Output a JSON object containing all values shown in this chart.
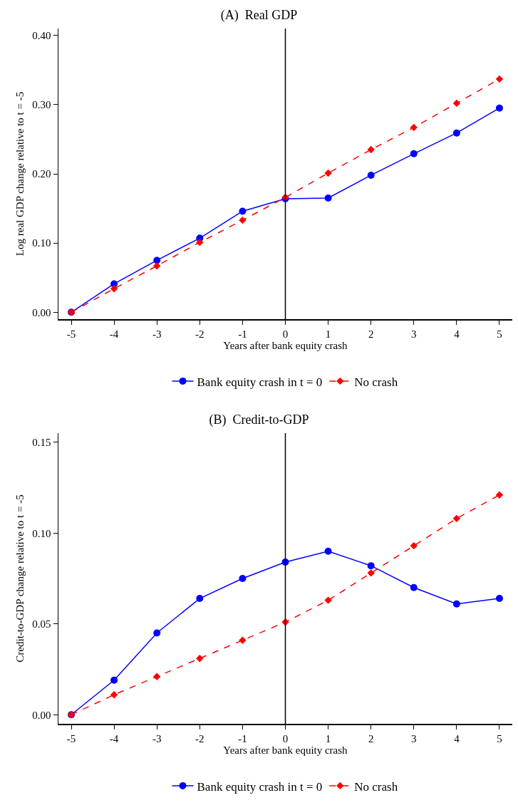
{
  "chart_data": [
    {
      "type": "line",
      "title": "(A)  Real GDP",
      "xlabel": "Years after bank equity crash",
      "ylabel": "Log real GDP change relative to t = -5",
      "x": [
        -5,
        -4,
        -3,
        -2,
        -1,
        0,
        1,
        2,
        3,
        4,
        5
      ],
      "series": [
        {
          "name": "Bank equity crash in t = 0",
          "color": "#0000ff",
          "marker": "circle",
          "line_style": "solid",
          "values": [
            0,
            0.041,
            0.075,
            0.107,
            0.146,
            0.164,
            0.165,
            0.198,
            0.229,
            0.259,
            0.295
          ]
        },
        {
          "name": "No crash",
          "color": "#ff0000",
          "marker": "diamond",
          "line_style": "dashed",
          "values": [
            0,
            0.034,
            0.067,
            0.101,
            0.133,
            0.166,
            0.201,
            0.235,
            0.267,
            0.302,
            0.337
          ]
        }
      ],
      "xlim": [
        -5.3,
        5.3
      ],
      "xticks": [
        -5,
        -4,
        -3,
        -2,
        -1,
        0,
        1,
        2,
        3,
        4,
        5
      ],
      "ylim": [
        -0.01,
        0.41
      ],
      "yticks": [
        {
          "value": 0,
          "label": "0.00"
        },
        {
          "value": 0.1,
          "label": "0.10"
        },
        {
          "value": 0.2,
          "label": "0.20"
        },
        {
          "value": 0.3,
          "label": "0.30"
        },
        {
          "value": 0.4,
          "label": "0.40"
        }
      ],
      "ref_lines": [
        {
          "axis": "x",
          "value": 0,
          "color": "#000000"
        }
      ],
      "grid": false,
      "legend": "bottom"
    },
    {
      "type": "line",
      "title": "(B)  Credit-to-GDP",
      "xlabel": "Years after bank equity crash",
      "ylabel": "Credit-to-GDP change relative to t = -5",
      "x": [
        -5,
        -4,
        -3,
        -2,
        -1,
        0,
        1,
        2,
        3,
        4,
        5
      ],
      "series": [
        {
          "name": "Bank equity crash in t = 0",
          "color": "#0000ff",
          "marker": "circle",
          "line_style": "solid",
          "values": [
            0,
            0.019,
            0.045,
            0.064,
            0.075,
            0.084,
            0.09,
            0.082,
            0.07,
            0.061,
            0.064
          ]
        },
        {
          "name": "No crash",
          "color": "#ff0000",
          "marker": "diamond",
          "line_style": "dashed",
          "values": [
            0,
            0.011,
            0.021,
            0.031,
            0.041,
            0.051,
            0.063,
            0.078,
            0.093,
            0.108,
            0.121
          ]
        }
      ],
      "xlim": [
        -5.3,
        5.3
      ],
      "xticks": [
        -5,
        -4,
        -3,
        -2,
        -1,
        0,
        1,
        2,
        3,
        4,
        5
      ],
      "ylim": [
        -0.005,
        0.155
      ],
      "yticks": [
        {
          "value": 0,
          "label": "0.00"
        },
        {
          "value": 0.05,
          "label": "0.05"
        },
        {
          "value": 0.1,
          "label": "0.10"
        },
        {
          "value": 0.15,
          "label": "0.15"
        }
      ],
      "ref_lines": [
        {
          "axis": "x",
          "value": 0,
          "color": "#000000"
        }
      ],
      "grid": false,
      "legend": "bottom"
    }
  ]
}
